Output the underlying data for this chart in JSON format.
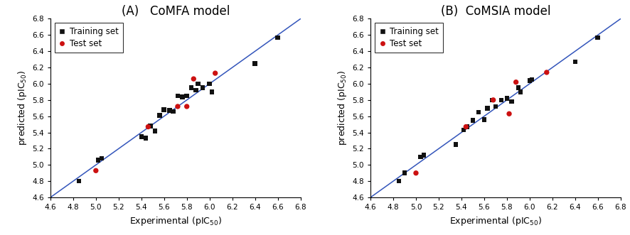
{
  "panel_A": {
    "title": "(A)   CoMFA model",
    "training_x": [
      4.85,
      5.02,
      5.05,
      5.4,
      5.44,
      5.48,
      5.52,
      5.56,
      5.6,
      5.65,
      5.68,
      5.72,
      5.76,
      5.8,
      5.84,
      5.88,
      5.9,
      5.94,
      6.0,
      6.02,
      6.4,
      6.6
    ],
    "training_y": [
      4.8,
      5.06,
      5.08,
      5.35,
      5.33,
      5.48,
      5.42,
      5.61,
      5.68,
      5.67,
      5.66,
      5.85,
      5.84,
      5.85,
      5.95,
      5.92,
      6.0,
      5.95,
      6.0,
      5.9,
      6.25,
      6.57
    ],
    "test_x": [
      5.0,
      5.46,
      5.72,
      5.8,
      5.86,
      6.05
    ],
    "test_y": [
      4.93,
      5.47,
      5.72,
      5.72,
      6.06,
      6.13
    ]
  },
  "panel_B": {
    "title": "(B)  CoMSIA model",
    "training_x": [
      4.85,
      4.9,
      5.04,
      5.07,
      5.35,
      5.42,
      5.45,
      5.5,
      5.55,
      5.6,
      5.63,
      5.67,
      5.7,
      5.75,
      5.8,
      5.84,
      5.9,
      5.92,
      6.0,
      6.02,
      6.4,
      6.6
    ],
    "training_y": [
      4.8,
      4.9,
      5.1,
      5.12,
      5.25,
      5.43,
      5.47,
      5.55,
      5.65,
      5.56,
      5.7,
      5.8,
      5.72,
      5.8,
      5.82,
      5.78,
      5.95,
      5.9,
      6.04,
      6.05,
      6.27,
      6.57
    ],
    "test_x": [
      5.0,
      5.44,
      5.68,
      5.82,
      5.88,
      6.15
    ],
    "test_y": [
      4.9,
      5.47,
      5.8,
      5.63,
      6.02,
      6.14
    ]
  },
  "xlim": [
    4.6,
    6.8
  ],
  "ylim": [
    4.6,
    6.8
  ],
  "xticks": [
    4.6,
    4.8,
    5.0,
    5.2,
    5.4,
    5.6,
    5.8,
    6.0,
    6.2,
    6.4,
    6.6,
    6.8
  ],
  "yticks": [
    4.6,
    4.8,
    5.0,
    5.2,
    5.4,
    5.6,
    5.8,
    6.0,
    6.2,
    6.4,
    6.6,
    6.8
  ],
  "xlabel": "Experimental (pIC$_{50}$)",
  "ylabel": "predicted (pIC$_{50}$)",
  "line_color": "#3355bb",
  "training_color": "#111111",
  "test_color": "#cc1111",
  "marker_size_train": 22,
  "marker_size_test": 28,
  "legend_loc": "upper left",
  "tick_fontsize": 7.5,
  "label_fontsize": 9,
  "title_fontsize": 12
}
